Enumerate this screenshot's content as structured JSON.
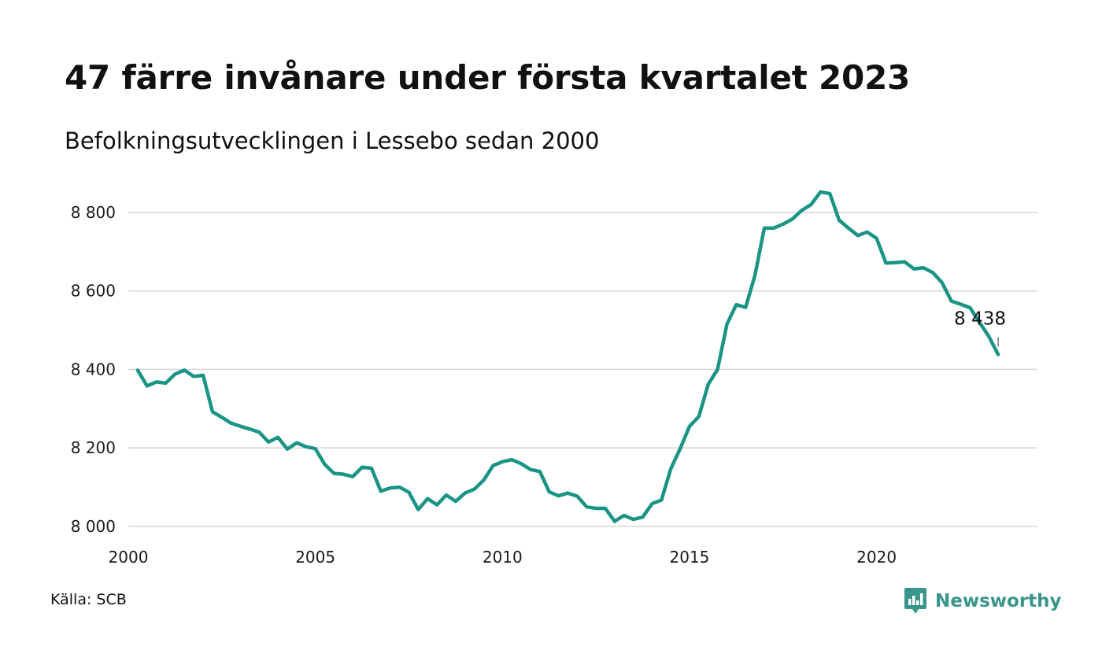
{
  "title": "47 färre invånare under första kvartalet 2023",
  "subtitle": "Befolkningsutvecklingen i Lessebo sedan 2000",
  "source": "Källa: SCB",
  "brand": {
    "name": "Newsworthy",
    "icon": "newsworthy-logo-icon",
    "color": "#3a958a"
  },
  "chart_data": {
    "type": "line",
    "x_tick_labels": [
      "2000",
      "2005",
      "2010",
      "2015",
      "2020"
    ],
    "y_tick_labels": [
      "8 000",
      "8 200",
      "8 400",
      "8 600",
      "8 800"
    ],
    "xlim": [
      2000,
      2024.3
    ],
    "ylim": [
      8000,
      8900
    ],
    "y_ticks": [
      8000,
      8200,
      8400,
      8600,
      8800
    ],
    "x_ticks": [
      2000,
      2005,
      2010,
      2015,
      2020
    ],
    "grid": "horizontal",
    "legend": "none",
    "line_color": "#1a9485",
    "end_label": "8 438",
    "series": [
      {
        "x": [
          2000.25,
          2000.5,
          2000.75,
          2001.0,
          2001.25,
          2001.5,
          2001.75,
          2002.0,
          2002.25,
          2002.5,
          2002.75,
          2003.0,
          2003.25,
          2003.5,
          2003.75,
          2004.0,
          2004.25,
          2004.5,
          2004.75,
          2005.0,
          2005.25,
          2005.5,
          2005.75,
          2006.0,
          2006.25,
          2006.5,
          2006.75,
          2007.0,
          2007.25,
          2007.5,
          2007.75,
          2008.0,
          2008.25,
          2008.5,
          2008.75,
          2009.0,
          2009.25,
          2009.5,
          2009.75,
          2010.0,
          2010.25,
          2010.5,
          2010.75,
          2011.0,
          2011.25,
          2011.5,
          2011.75,
          2012.0,
          2012.25,
          2012.5,
          2012.75,
          2013.0,
          2013.25,
          2013.5,
          2013.75,
          2014.0,
          2014.25,
          2014.5,
          2014.75,
          2015.0,
          2015.25,
          2015.5,
          2015.75,
          2016.0,
          2016.25,
          2016.5,
          2016.75,
          2017.0,
          2017.25,
          2017.5,
          2017.75,
          2018.0,
          2018.25,
          2018.5,
          2018.75,
          2019.0,
          2019.25,
          2019.5,
          2019.75,
          2020.0,
          2020.25,
          2020.5,
          2020.75,
          2021.0,
          2021.25,
          2021.5,
          2021.75,
          2022.0,
          2022.25,
          2022.5,
          2022.75,
          2023.0,
          2023.25
        ],
        "y": [
          8398,
          8358,
          8368,
          8365,
          8388,
          8398,
          8382,
          8385,
          8292,
          8278,
          8263,
          8255,
          8248,
          8240,
          8215,
          8227,
          8197,
          8213,
          8203,
          8198,
          8158,
          8135,
          8133,
          8127,
          8151,
          8148,
          8090,
          8098,
          8100,
          8087,
          8043,
          8071,
          8055,
          8080,
          8064,
          8085,
          8095,
          8118,
          8155,
          8165,
          8170,
          8160,
          8145,
          8140,
          8088,
          8078,
          8085,
          8077,
          8050,
          8046,
          8046,
          8013,
          8028,
          8018,
          8024,
          8058,
          8067,
          8147,
          8198,
          8255,
          8280,
          8362,
          8400,
          8515,
          8565,
          8558,
          8640,
          8760,
          8760,
          8770,
          8783,
          8805,
          8820,
          8852,
          8848,
          8780,
          8760,
          8741,
          8750,
          8734,
          8671,
          8672,
          8674,
          8656,
          8659,
          8647,
          8621,
          8574,
          8566,
          8557,
          8520,
          8484,
          8438
        ]
      }
    ]
  }
}
